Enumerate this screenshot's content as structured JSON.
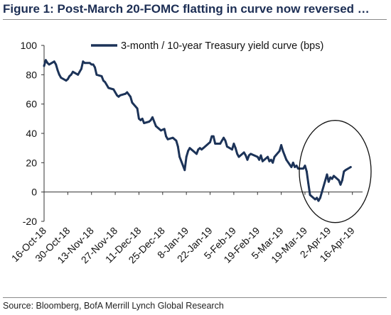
{
  "figure": {
    "title": "Figure 1: Post-March 20-FOMC flatting in curve now reversed …",
    "source": "Source: Bloomberg, BofA Merrill Lynch Global Research"
  },
  "chart_data": {
    "type": "line",
    "title": "Figure 1: Post-March 20-FOMC flatting in curve now reversed …",
    "xlabel": "",
    "ylabel": "",
    "ylim": [
      -20,
      100
    ],
    "y_ticks": [
      -20,
      0,
      20,
      40,
      60,
      80,
      100
    ],
    "x_range": [
      "2018-10-16",
      "2019-04-22"
    ],
    "x_ticks": [
      {
        "date": "2018-10-16",
        "label": "16-Oct-18"
      },
      {
        "date": "2018-10-30",
        "label": "30-Oct-18"
      },
      {
        "date": "2018-11-13",
        "label": "13-Nov-18"
      },
      {
        "date": "2018-11-27",
        "label": "27-Nov-18"
      },
      {
        "date": "2018-12-11",
        "label": "11-Dec-18"
      },
      {
        "date": "2018-12-25",
        "label": "25-Dec-18"
      },
      {
        "date": "2019-01-08",
        "label": "8-Jan-19"
      },
      {
        "date": "2019-01-22",
        "label": "22-Jan-19"
      },
      {
        "date": "2019-02-05",
        "label": "5-Feb-19"
      },
      {
        "date": "2019-02-19",
        "label": "19-Feb-19"
      },
      {
        "date": "2019-03-05",
        "label": "5-Mar-19"
      },
      {
        "date": "2019-03-19",
        "label": "19-Mar-19"
      },
      {
        "date": "2019-04-02",
        "label": "2-Apr-19"
      },
      {
        "date": "2019-04-16",
        "label": "16-Apr-19"
      }
    ],
    "grid": false,
    "legend_position": "top-right",
    "annotation": "ellipse highlighting late March to mid April 2019",
    "series": [
      {
        "name": "3-month / 10-year Treasury yield curve (bps)",
        "color": "#1c3358",
        "points": [
          [
            "2018-10-16",
            86
          ],
          [
            "2018-10-17",
            90
          ],
          [
            "2018-10-18",
            88
          ],
          [
            "2018-10-19",
            87
          ],
          [
            "2018-10-22",
            89
          ],
          [
            "2018-10-23",
            87
          ],
          [
            "2018-10-24",
            83
          ],
          [
            "2018-10-25",
            80
          ],
          [
            "2018-10-26",
            78
          ],
          [
            "2018-10-29",
            76
          ],
          [
            "2018-10-30",
            77
          ],
          [
            "2018-10-31",
            79
          ],
          [
            "2018-11-01",
            80
          ],
          [
            "2018-11-02",
            82
          ],
          [
            "2018-11-05",
            80
          ],
          [
            "2018-11-06",
            82
          ],
          [
            "2018-11-07",
            84
          ],
          [
            "2018-11-08",
            89
          ],
          [
            "2018-11-09",
            88
          ],
          [
            "2018-11-12",
            88
          ],
          [
            "2018-11-13",
            87
          ],
          [
            "2018-11-14",
            87
          ],
          [
            "2018-11-15",
            85
          ],
          [
            "2018-11-16",
            80
          ],
          [
            "2018-11-19",
            79
          ],
          [
            "2018-11-20",
            76
          ],
          [
            "2018-11-21",
            75
          ],
          [
            "2018-11-23",
            71
          ],
          [
            "2018-11-26",
            70
          ],
          [
            "2018-11-27",
            68
          ],
          [
            "2018-11-28",
            66
          ],
          [
            "2018-11-29",
            65
          ],
          [
            "2018-11-30",
            66
          ],
          [
            "2018-12-03",
            67
          ],
          [
            "2018-12-04",
            68
          ],
          [
            "2018-12-06",
            65
          ],
          [
            "2018-12-07",
            61
          ],
          [
            "2018-12-10",
            57
          ],
          [
            "2018-12-11",
            50
          ],
          [
            "2018-12-12",
            49
          ],
          [
            "2018-12-13",
            50
          ],
          [
            "2018-12-14",
            47
          ],
          [
            "2018-12-17",
            48
          ],
          [
            "2018-12-18",
            49
          ],
          [
            "2018-12-19",
            51
          ],
          [
            "2018-12-20",
            48
          ],
          [
            "2018-12-21",
            45
          ],
          [
            "2018-12-24",
            42
          ],
          [
            "2018-12-26",
            43
          ],
          [
            "2018-12-27",
            38
          ],
          [
            "2018-12-28",
            36
          ],
          [
            "2018-12-31",
            37
          ],
          [
            "2019-01-02",
            35
          ],
          [
            "2019-01-03",
            31
          ],
          [
            "2019-01-04",
            24
          ],
          [
            "2019-01-07",
            15
          ],
          [
            "2019-01-08",
            24
          ],
          [
            "2019-01-09",
            28
          ],
          [
            "2019-01-10",
            30
          ],
          [
            "2019-01-11",
            29
          ],
          [
            "2019-01-14",
            26
          ],
          [
            "2019-01-15",
            29
          ],
          [
            "2019-01-16",
            30
          ],
          [
            "2019-01-17",
            29
          ],
          [
            "2019-01-18",
            30
          ],
          [
            "2019-01-22",
            34
          ],
          [
            "2019-01-23",
            38
          ],
          [
            "2019-01-24",
            38
          ],
          [
            "2019-01-25",
            33
          ],
          [
            "2019-01-28",
            33
          ],
          [
            "2019-01-29",
            35
          ],
          [
            "2019-01-30",
            37
          ],
          [
            "2019-01-31",
            35
          ],
          [
            "2019-02-01",
            31
          ],
          [
            "2019-02-04",
            29
          ],
          [
            "2019-02-05",
            33
          ],
          [
            "2019-02-06",
            30
          ],
          [
            "2019-02-07",
            26
          ],
          [
            "2019-02-08",
            24
          ],
          [
            "2019-02-11",
            27
          ],
          [
            "2019-02-12",
            25
          ],
          [
            "2019-02-13",
            22
          ],
          [
            "2019-02-14",
            25
          ],
          [
            "2019-02-15",
            26
          ],
          [
            "2019-02-19",
            24
          ],
          [
            "2019-02-20",
            22
          ],
          [
            "2019-02-21",
            25
          ],
          [
            "2019-02-22",
            21
          ],
          [
            "2019-02-25",
            24
          ],
          [
            "2019-02-26",
            21
          ],
          [
            "2019-02-27",
            22
          ],
          [
            "2019-02-28",
            20
          ],
          [
            "2019-03-01",
            24
          ],
          [
            "2019-03-04",
            28
          ],
          [
            "2019-03-05",
            32
          ],
          [
            "2019-03-06",
            28
          ],
          [
            "2019-03-07",
            25
          ],
          [
            "2019-03-08",
            22
          ],
          [
            "2019-03-11",
            17
          ],
          [
            "2019-03-12",
            20
          ],
          [
            "2019-03-13",
            17
          ],
          [
            "2019-03-14",
            18
          ],
          [
            "2019-03-15",
            16
          ],
          [
            "2019-03-18",
            16
          ],
          [
            "2019-03-19",
            18
          ],
          [
            "2019-03-20",
            14
          ],
          [
            "2019-03-21",
            6
          ],
          [
            "2019-03-22",
            -2
          ],
          [
            "2019-03-25",
            -5
          ],
          [
            "2019-03-26",
            -4
          ],
          [
            "2019-03-27",
            -6
          ],
          [
            "2019-03-28",
            -4
          ],
          [
            "2019-03-29",
            0
          ],
          [
            "2019-04-01",
            12
          ],
          [
            "2019-04-02",
            7
          ],
          [
            "2019-04-03",
            10
          ],
          [
            "2019-04-04",
            9
          ],
          [
            "2019-04-05",
            11
          ],
          [
            "2019-04-08",
            8
          ],
          [
            "2019-04-09",
            5
          ],
          [
            "2019-04-10",
            8
          ],
          [
            "2019-04-11",
            14
          ],
          [
            "2019-04-12",
            15
          ],
          [
            "2019-04-15",
            17
          ]
        ]
      }
    ]
  }
}
